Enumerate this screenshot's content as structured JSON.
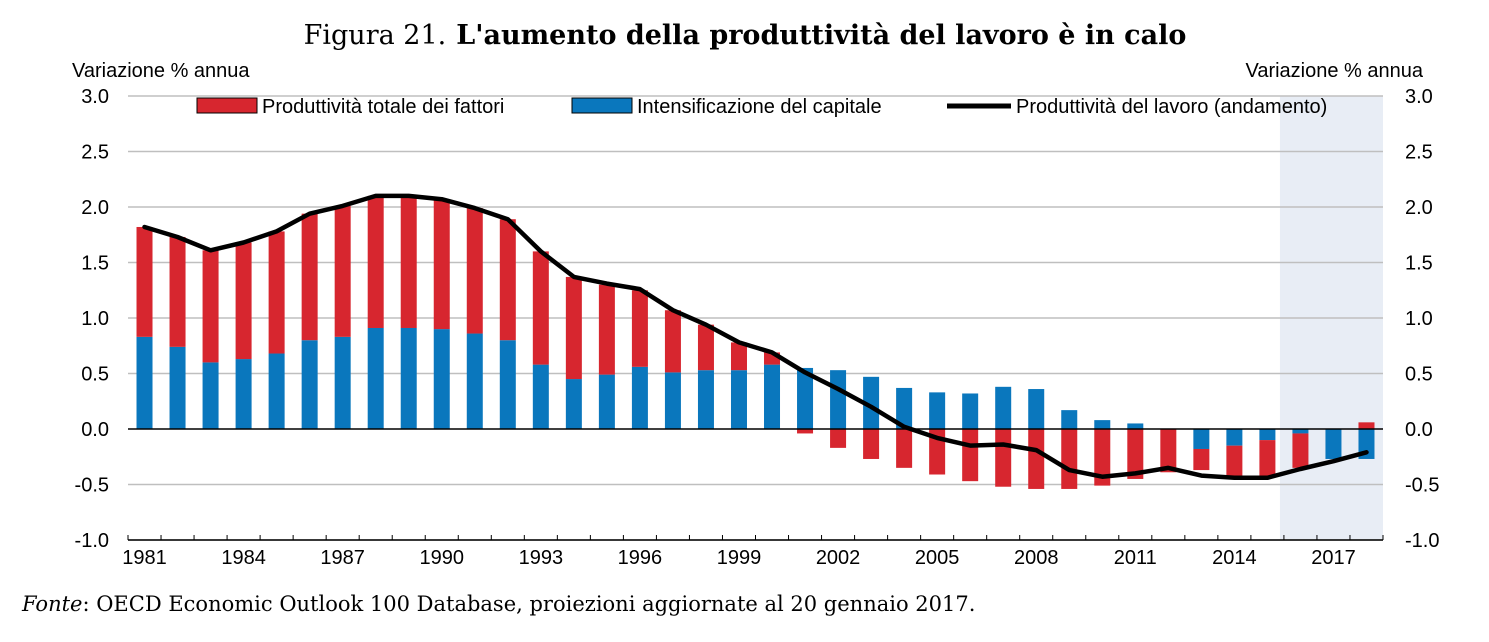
{
  "title": {
    "prefix": "Figura 21.",
    "main": "L'aumento della produttività del lavoro è in calo"
  },
  "unit_left": "Variazione % annua",
  "unit_right": "Variazione % annua",
  "source": {
    "label": "Fonte",
    "text": ": OECD Economic Outlook 100 Database, proiezioni aggiornate al 20 gennaio 2017."
  },
  "colors": {
    "tfp": "#d7262f",
    "capital": "#0a77bd",
    "labour": "#000000",
    "grid": "#bfbfbf",
    "projection_shade": "#e8edf5"
  },
  "chart_data": {
    "type": "bar",
    "subtype": "stacked bar with line overlay",
    "categories": [
      "1981",
      "1982",
      "1983",
      "1984",
      "1985",
      "1986",
      "1987",
      "1988",
      "1989",
      "1990",
      "1991",
      "1992",
      "1993",
      "1994",
      "1995",
      "1996",
      "1997",
      "1998",
      "1999",
      "2000",
      "2001",
      "2002",
      "2003",
      "2004",
      "2005",
      "2006",
      "2007",
      "2008",
      "2009",
      "2010",
      "2011",
      "2012",
      "2013",
      "2014",
      "2015",
      "2016",
      "2017",
      "2018"
    ],
    "x_tick_labels": [
      "1981",
      "1984",
      "1987",
      "1990",
      "1993",
      "1996",
      "1999",
      "2002",
      "2005",
      "2008",
      "2011",
      "2014",
      "2017"
    ],
    "ylim": [
      -1.0,
      3.0
    ],
    "y_ticks": [
      "3.0",
      "2.5",
      "2.0",
      "1.5",
      "1.0",
      "0.5",
      "0.0",
      "-0.5",
      "-1.0"
    ],
    "grid": true,
    "legend_position": "top",
    "projection_shaded_from": "2016",
    "series": [
      {
        "name": "Produttività totale dei fattori",
        "kind": "bar",
        "values": [
          0.99,
          0.99,
          1.01,
          1.05,
          1.1,
          1.14,
          1.18,
          1.19,
          1.19,
          1.17,
          1.13,
          1.09,
          1.02,
          0.92,
          0.81,
          0.69,
          0.56,
          0.41,
          0.25,
          0.11,
          -0.04,
          -0.17,
          -0.27,
          -0.35,
          -0.41,
          -0.47,
          -0.52,
          -0.54,
          -0.54,
          -0.51,
          -0.45,
          -0.39,
          -0.19,
          -0.28,
          -0.33,
          -0.31,
          0.0,
          0.06
        ]
      },
      {
        "name": "Intensificazione del capitale",
        "kind": "bar",
        "values": [
          0.83,
          0.74,
          0.6,
          0.63,
          0.68,
          0.8,
          0.83,
          0.91,
          0.91,
          0.9,
          0.86,
          0.8,
          0.58,
          0.45,
          0.49,
          0.56,
          0.51,
          0.53,
          0.53,
          0.58,
          0.55,
          0.53,
          0.47,
          0.37,
          0.33,
          0.32,
          0.38,
          0.36,
          0.17,
          0.08,
          0.05,
          0.0,
          -0.18,
          -0.15,
          -0.1,
          -0.04,
          -0.27,
          -0.27
        ]
      },
      {
        "name": "Produttività del lavoro (andamento)",
        "kind": "line",
        "values": [
          1.82,
          1.73,
          1.61,
          1.68,
          1.78,
          1.94,
          2.01,
          2.1,
          2.1,
          2.07,
          1.99,
          1.89,
          1.6,
          1.37,
          1.31,
          1.26,
          1.07,
          0.94,
          0.78,
          0.69,
          0.51,
          0.36,
          0.2,
          0.02,
          -0.08,
          -0.15,
          -0.14,
          -0.19,
          -0.37,
          -0.43,
          -0.4,
          -0.35,
          -0.42,
          -0.44,
          -0.44,
          -0.36,
          -0.29,
          -0.21
        ]
      }
    ]
  }
}
